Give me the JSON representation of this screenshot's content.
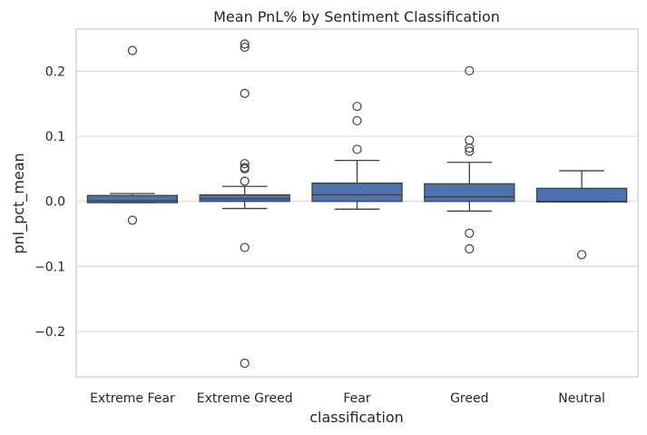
{
  "chart_data": {
    "type": "box",
    "title": "Mean PnL% by Sentiment Classification",
    "xlabel": "classification",
    "ylabel": "pnl_pct_mean",
    "ylim": [
      -0.27,
      0.265
    ],
    "yticks": [
      -0.2,
      -0.1,
      0.0,
      0.1,
      0.2
    ],
    "ytick_labels": [
      "−0.2",
      "−0.1",
      "0.0",
      "0.1",
      "0.2"
    ],
    "grid": true,
    "colors": {
      "box": "#4c72b0",
      "line": "#3f3f3f",
      "grid": "#d9d9d9",
      "frame": "#cccccc"
    },
    "categories": [
      "Extreme Fear",
      "Extreme Greed",
      "Fear",
      "Greed",
      "Neutral"
    ],
    "boxes": [
      {
        "category": "Extreme Fear",
        "whisker_low": -0.002,
        "q1": -0.002,
        "median": 0.001,
        "q3": 0.009,
        "whisker_high": 0.012,
        "outliers": [
          0.232,
          -0.029
        ]
      },
      {
        "category": "Extreme Greed",
        "whisker_low": -0.011,
        "q1": 0.0,
        "median": 0.004,
        "q3": 0.01,
        "whisker_high": 0.023,
        "outliers": [
          0.242,
          0.237,
          0.166,
          0.058,
          0.052,
          0.05,
          0.031,
          -0.071,
          -0.249
        ]
      },
      {
        "category": "Fear",
        "whisker_low": -0.012,
        "q1": 0.0,
        "median": 0.01,
        "q3": 0.028,
        "whisker_high": 0.063,
        "outliers": [
          0.146,
          0.124,
          0.08
        ]
      },
      {
        "category": "Greed",
        "whisker_low": -0.015,
        "q1": 0.0,
        "median": 0.007,
        "q3": 0.027,
        "whisker_high": 0.06,
        "outliers": [
          0.201,
          0.094,
          0.082,
          0.077,
          -0.049,
          -0.073
        ]
      },
      {
        "category": "Neutral",
        "whisker_low": -0.001,
        "q1": -0.001,
        "median": 0.0,
        "q3": 0.02,
        "whisker_high": 0.047,
        "outliers": [
          -0.082
        ]
      }
    ]
  }
}
